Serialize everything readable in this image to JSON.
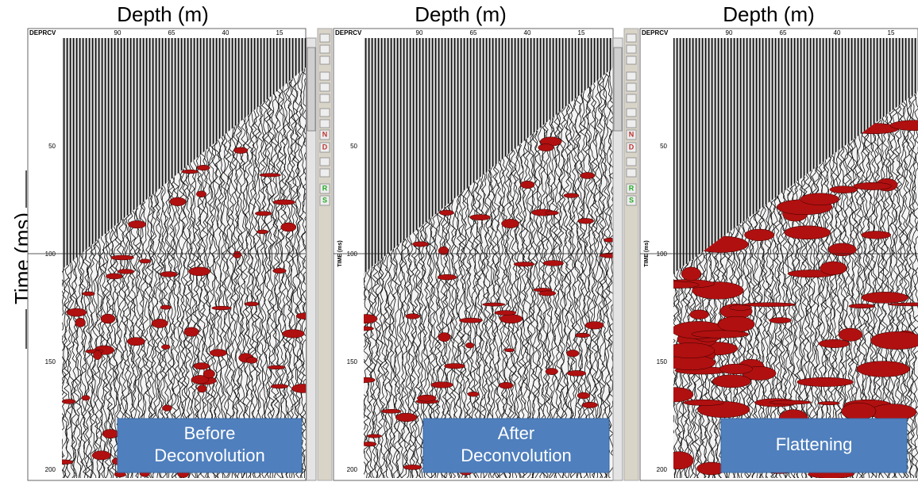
{
  "header": {
    "time_label": "Time (ms)"
  },
  "panels": [
    {
      "depth_label": "Depth (m)",
      "corner_label": "DEPRCV",
      "depth_ticks": [
        90,
        65,
        40,
        15
      ],
      "time_ticks": [
        50,
        100,
        150,
        200
      ],
      "caption": [
        "Before",
        "Deconvolution"
      ]
    },
    {
      "depth_label": "Depth (m)",
      "corner_label": "DEPRCV",
      "depth_ticks": [
        90,
        65,
        40,
        15
      ],
      "time_ticks": [
        50,
        100,
        150,
        200
      ],
      "time_axis_label": "TIME (ms)",
      "caption": [
        "After",
        "Deconvolution"
      ]
    },
    {
      "depth_label": "Depth (m)",
      "corner_label": "DEPRCV",
      "depth_ticks": [
        90,
        65,
        40,
        15
      ],
      "time_ticks": [
        50,
        100,
        150,
        200
      ],
      "time_axis_label": "TIME (ms)",
      "caption": [
        "Flattening"
      ]
    }
  ],
  "toolbar": {
    "icons": [
      "N",
      "D",
      "R",
      "S"
    ]
  }
}
